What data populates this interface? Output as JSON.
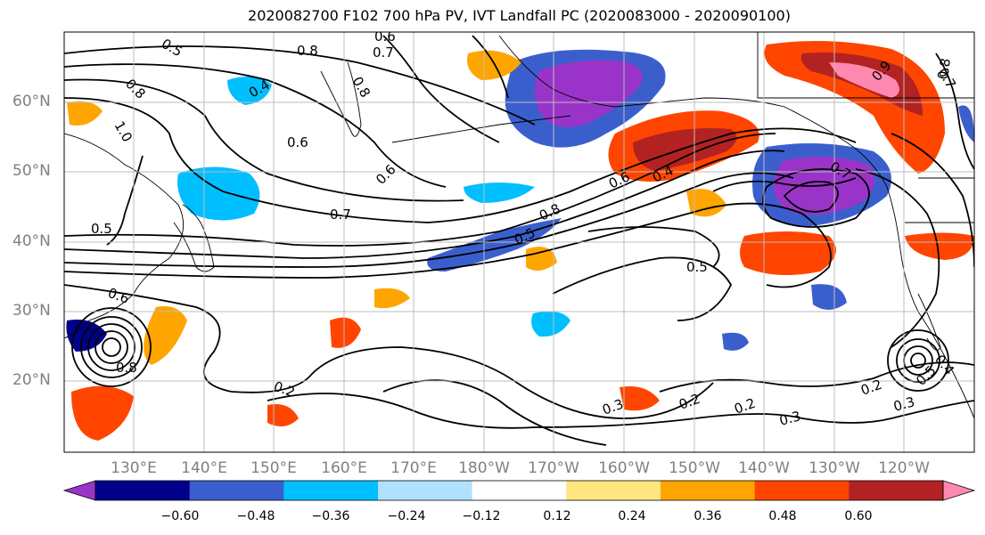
{
  "title": "2020082700 F102 700 hPa PV, IVT Landfall PC (2020083000 - 2020090100)",
  "map": {
    "lat_labels": [
      "60°N",
      "50°N",
      "40°N",
      "30°N",
      "20°N"
    ],
    "lon_labels": [
      "130°E",
      "140°E",
      "150°E",
      "160°E",
      "170°E",
      "180°W",
      "170°W",
      "160°W",
      "150°W",
      "140°W",
      "130°W",
      "120°W"
    ],
    "contour_labels": [
      "0.5",
      "0.6",
      "0.7",
      "0.8",
      "0.4",
      "1.0",
      "0.6",
      "0.6",
      "0.7",
      "0.8",
      "0.5",
      "0.6",
      "0.4",
      "0.8",
      "0.5",
      "0.6",
      "0.8",
      "0.7",
      "0.5",
      "0.8",
      "0.2",
      "0.3",
      "0.2",
      "0.2",
      "0.3",
      "0.2",
      "0.4",
      "0.5",
      "0.9",
      "0.8",
      "0.7",
      "0.3"
    ]
  },
  "colorbar": {
    "ticks": [
      "−0.60",
      "−0.48",
      "−0.36",
      "−0.24",
      "−0.12",
      "0.12",
      "0.24",
      "0.36",
      "0.48",
      "0.60"
    ],
    "colors": [
      "#9a34c9",
      "#00008b",
      "#3a5fcd",
      "#00bfff",
      "#b0e2ff",
      "#ffffff",
      "#ffe680",
      "#ffa500",
      "#ff4500",
      "#b22222",
      "#ff88b0"
    ]
  }
}
